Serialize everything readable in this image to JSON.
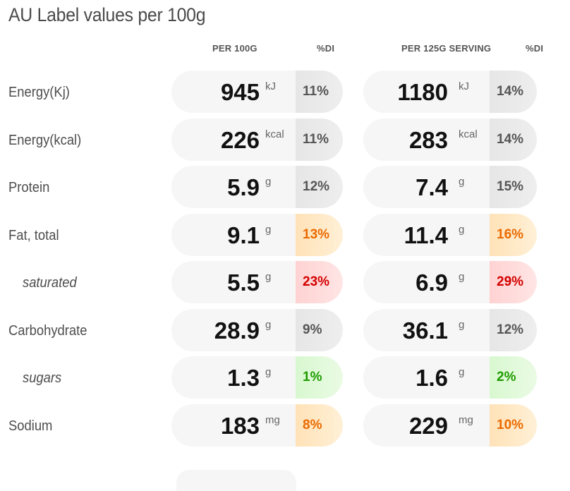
{
  "title": "AU Label values per 100g",
  "headers": {
    "per100": "PER 100G",
    "di1": "%DI",
    "perServing": "PER 125G SERVING",
    "di2": "%DI"
  },
  "rows": [
    {
      "label": "Energy(Kj)",
      "sub": false,
      "per100": {
        "value": "945",
        "unit": "kJ",
        "di": "11%",
        "level": "grey"
      },
      "serving": {
        "value": "1180",
        "unit": "kJ",
        "di": "14%",
        "level": "grey"
      }
    },
    {
      "label": "Energy(kcal)",
      "sub": false,
      "per100": {
        "value": "226",
        "unit": "kcal",
        "di": "11%",
        "level": "grey"
      },
      "serving": {
        "value": "283",
        "unit": "kcal",
        "di": "14%",
        "level": "grey"
      }
    },
    {
      "label": "Protein",
      "sub": false,
      "per100": {
        "value": "5.9",
        "unit": "g",
        "di": "12%",
        "level": "grey"
      },
      "serving": {
        "value": "7.4",
        "unit": "g",
        "di": "15%",
        "level": "grey"
      }
    },
    {
      "label": "Fat, total",
      "sub": false,
      "per100": {
        "value": "9.1",
        "unit": "g",
        "di": "13%",
        "level": "orange"
      },
      "serving": {
        "value": "11.4",
        "unit": "g",
        "di": "16%",
        "level": "orange"
      }
    },
    {
      "label": "saturated",
      "sub": true,
      "per100": {
        "value": "5.5",
        "unit": "g",
        "di": "23%",
        "level": "red"
      },
      "serving": {
        "value": "6.9",
        "unit": "g",
        "di": "29%",
        "level": "red"
      }
    },
    {
      "label": "Carbohydrate",
      "sub": false,
      "per100": {
        "value": "28.9",
        "unit": "g",
        "di": "9%",
        "level": "grey"
      },
      "serving": {
        "value": "36.1",
        "unit": "g",
        "di": "12%",
        "level": "grey"
      }
    },
    {
      "label": "sugars",
      "sub": true,
      "per100": {
        "value": "1.3",
        "unit": "g",
        "di": "1%",
        "level": "green"
      },
      "serving": {
        "value": "1.6",
        "unit": "g",
        "di": "2%",
        "level": "green"
      }
    },
    {
      "label": "Sodium",
      "sub": false,
      "per100": {
        "value": "183",
        "unit": "mg",
        "di": "8%",
        "level": "orange"
      },
      "serving": {
        "value": "229",
        "unit": "mg",
        "di": "10%",
        "level": "orange"
      }
    }
  ],
  "colors": {
    "grey": "#555555",
    "orange": "#ea6a00",
    "red": "#d40000",
    "green": "#1f9b00"
  }
}
